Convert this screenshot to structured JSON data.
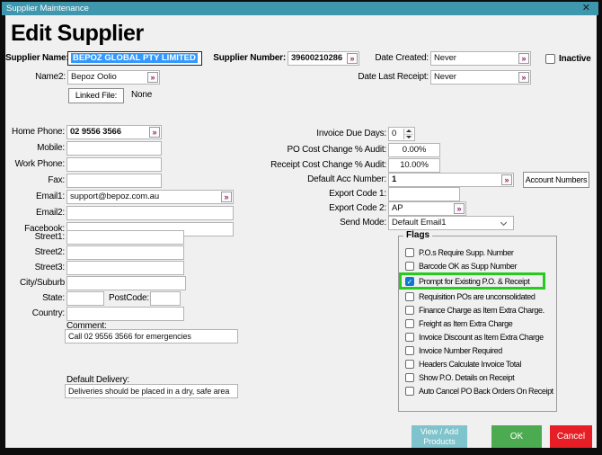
{
  "titlebar": {
    "title": "Supplier Maintenance",
    "close_glyph": "✕"
  },
  "heading": "Edit Supplier",
  "icons": {
    "expander": "»",
    "check": "✓"
  },
  "identity": {
    "supplier_name_label": "Supplier Name:",
    "supplier_name_value": "BEPOZ GLOBAL PTY LIMITED",
    "supplier_number_label": "Supplier Number:",
    "supplier_number_value": "39600210286",
    "name2_label": "Name2:",
    "name2_value": "Bepoz Oolio",
    "linked_file_button": "Linked File:",
    "linked_file_value": "None"
  },
  "dates": {
    "date_created_label": "Date Created:",
    "date_created_value": "Never",
    "date_last_receipt_label": "Date Last Receipt:",
    "date_last_receipt_value": "Never",
    "inactive_label": "Inactive",
    "inactive_checked": false
  },
  "contact": {
    "home_phone_label": "Home Phone:",
    "home_phone_value": "02 9556 3566",
    "mobile_label": "Mobile:",
    "mobile_value": "",
    "work_phone_label": "Work Phone:",
    "work_phone_value": "",
    "fax_label": "Fax:",
    "fax_value": "",
    "email1_label": "Email1:",
    "email1_value": "support@bepoz.com.au",
    "email2_label": "Email2:",
    "email2_value": "",
    "facebook_label": "Facebook:",
    "facebook_value": ""
  },
  "address": {
    "street1_label": "Street1:",
    "street1_value": "",
    "street2_label": "Street2:",
    "street2_value": "",
    "street3_label": "Street3:",
    "street3_value": "",
    "city_label": "City/Suburb",
    "city_value": "",
    "state_label": "State:",
    "state_value": "",
    "postcode_label": "PostCode:",
    "postcode_value": "",
    "country_label": "Country:",
    "country_value": ""
  },
  "comment": {
    "label": "Comment:",
    "value": "Call 02 9556 3566 for emergencies"
  },
  "default_delivery": {
    "label": "Default Delivery:",
    "value": "Deliveries should be placed in a dry, safe area"
  },
  "purchasing": {
    "invoice_due_days_label": "Invoice Due Days:",
    "invoice_due_days_value": "0",
    "po_cost_audit_label": "PO Cost Change % Audit:",
    "po_cost_audit_value": "0.00%",
    "receipt_cost_audit_label": "Receipt Cost Change % Audit:",
    "receipt_cost_audit_value": "10.00%",
    "default_acc_label": "Default Acc Number:",
    "default_acc_value": "1",
    "account_numbers_button": "Account Numbers",
    "export_code1_label": "Export Code 1:",
    "export_code1_value": "",
    "export_code2_label": "Export Code 2:",
    "export_code2_value": "AP",
    "send_mode_label": "Send Mode:",
    "send_mode_value": "Default Email1"
  },
  "flags": {
    "title": "Flags",
    "items": [
      {
        "label": "P.O.s Require Supp. Number",
        "checked": false,
        "highlighted": false
      },
      {
        "label": "Barcode OK as Supp Number",
        "checked": false,
        "highlighted": false
      },
      {
        "label": "Prompt for Existing P.O. & Receipt",
        "checked": true,
        "highlighted": true
      },
      {
        "label": "Requisition POs are unconsolidated",
        "checked": false,
        "highlighted": false
      },
      {
        "label": "Finance Charge as Item Extra Charge.",
        "checked": false,
        "highlighted": false
      },
      {
        "label": "Freight as Item Extra Charge",
        "checked": false,
        "highlighted": false
      },
      {
        "label": "Invoice Discount as Item Extra Charge",
        "checked": false,
        "highlighted": false
      },
      {
        "label": "Invoice Number Required",
        "checked": false,
        "highlighted": false
      },
      {
        "label": "Headers Calculate Invoice Total",
        "checked": false,
        "highlighted": false
      },
      {
        "label": "Show P.O. Details on Receipt",
        "checked": false,
        "highlighted": false
      },
      {
        "label": "Auto Cancel PO Back Orders On Receipt",
        "checked": false,
        "highlighted": false
      }
    ]
  },
  "actions": {
    "view_add_products": "View / Add Products",
    "ok": "OK",
    "cancel": "Cancel"
  },
  "colors": {
    "titlebar": "#3e97ad",
    "hl": "#25cb1d",
    "cbblue": "#0c78d4",
    "sel": "#3399ff",
    "ok": "#4cab50",
    "cancel": "#e71e25",
    "viewadd": "#7fc3cc"
  }
}
